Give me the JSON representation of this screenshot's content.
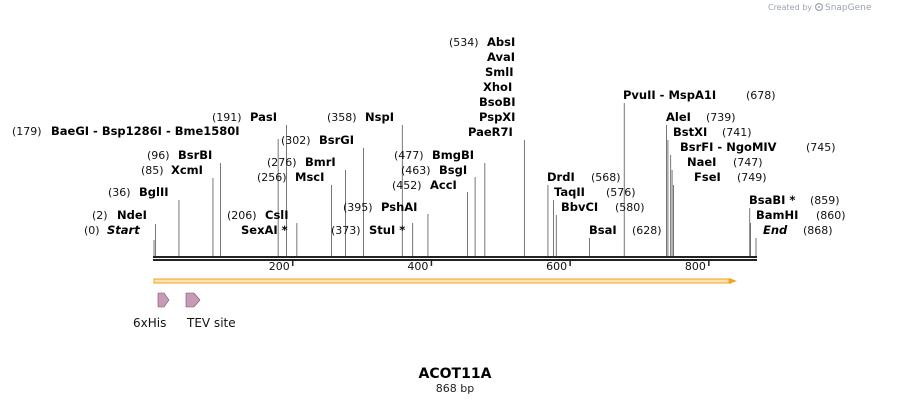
{
  "credit": {
    "prefix": "Created by",
    "brand": "SnapGene"
  },
  "map": {
    "name": "ACOT11A",
    "length_label": "868 bp",
    "length_bp": 868,
    "ruler_ticks": [
      200,
      400,
      600,
      800
    ],
    "colors": {
      "orf": "#f4a21c",
      "orf_fill": "#fbe3b4",
      "feature": "#c79ab5",
      "ruler": "#222222"
    }
  },
  "enzymes": [
    {
      "name": "Start",
      "pos": "(0)",
      "bp": 0,
      "italic": true
    },
    {
      "name": "NdeI",
      "pos": "(2)",
      "bp": 2
    },
    {
      "name": "BglII",
      "pos": "(36)",
      "bp": 36
    },
    {
      "name": "XcmI",
      "pos": "(85)",
      "bp": 85
    },
    {
      "name": "BsrBI",
      "pos": "(96)",
      "bp": 96
    },
    {
      "name": "BaeGI  -  Bsp1286I  -  Bme1580I",
      "pos": "(179)",
      "bp": 179
    },
    {
      "name": "PasI",
      "pos": "(191)",
      "bp": 191
    },
    {
      "name": "CslI",
      "pos": "(206)",
      "bp": 206
    },
    {
      "name": "SexAI *",
      "pos": "",
      "bp": 206
    },
    {
      "name": "MscI",
      "pos": "(256)",
      "bp": 256
    },
    {
      "name": "BmrI",
      "pos": "(276)",
      "bp": 276
    },
    {
      "name": "BsrGI",
      "pos": "(302)",
      "bp": 302
    },
    {
      "name": "NspI",
      "pos": "(358)",
      "bp": 358
    },
    {
      "name": "StuI *",
      "pos": "(373)",
      "bp": 373
    },
    {
      "name": "PshAI",
      "pos": "(395)",
      "bp": 395
    },
    {
      "name": "AccI",
      "pos": "(452)",
      "bp": 452
    },
    {
      "name": "BsgI",
      "pos": "(463)",
      "bp": 463
    },
    {
      "name": "BmgBI",
      "pos": "(477)",
      "bp": 477
    },
    {
      "name": "AbsI",
      "pos": "(534)",
      "bp": 534
    },
    {
      "name": "AvaI",
      "pos": "",
      "bp": 534
    },
    {
      "name": "SmlI",
      "pos": "",
      "bp": 534
    },
    {
      "name": "XhoI",
      "pos": "",
      "bp": 534
    },
    {
      "name": "BsoBI",
      "pos": "",
      "bp": 534
    },
    {
      "name": "PspXI",
      "pos": "",
      "bp": 534
    },
    {
      "name": "PaeR7I",
      "pos": "",
      "bp": 534
    },
    {
      "name": "DrdI",
      "pos": "(568)",
      "bp": 568
    },
    {
      "name": "TaqII",
      "pos": "(576)",
      "bp": 576
    },
    {
      "name": "BbvCI",
      "pos": "(580)",
      "bp": 580
    },
    {
      "name": "BsaI",
      "pos": "(628)",
      "bp": 628
    },
    {
      "name": "PvuII  -  MspA1I",
      "pos": "(678)",
      "bp": 678
    },
    {
      "name": "AleI",
      "pos": "(739)",
      "bp": 739
    },
    {
      "name": "BstXI",
      "pos": "(741)",
      "bp": 741
    },
    {
      "name": "BsrFI  -  NgoMIV",
      "pos": "(745)",
      "bp": 745
    },
    {
      "name": "NaeI",
      "pos": "(747)",
      "bp": 747
    },
    {
      "name": "FseI",
      "pos": "(749)",
      "bp": 749
    },
    {
      "name": "BsaBI *",
      "pos": "(859)",
      "bp": 859
    },
    {
      "name": "BamHI",
      "pos": "(860)",
      "bp": 860
    },
    {
      "name": "End",
      "pos": "(868)",
      "bp": 868,
      "italic": true
    }
  ],
  "features": [
    {
      "name": "6xHis"
    },
    {
      "name": "TEV site"
    }
  ]
}
